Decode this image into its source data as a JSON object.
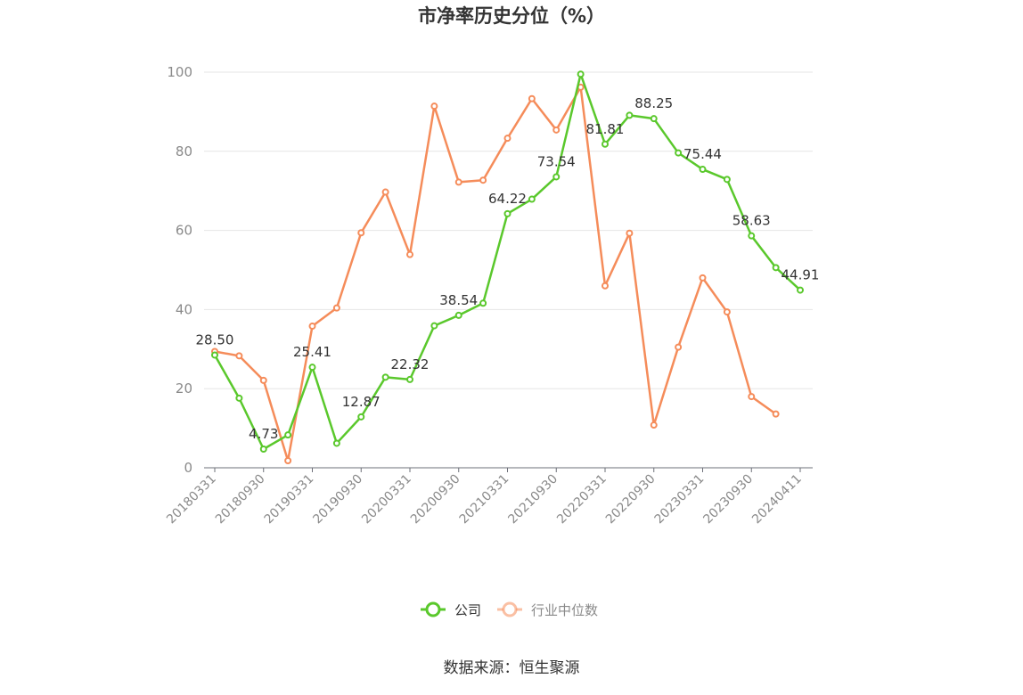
{
  "chart_data": {
    "type": "line",
    "title": "市净率历史分位（%）",
    "source": "数据来源：恒生聚源",
    "ylim": [
      0,
      100
    ],
    "yticks": [
      0,
      20,
      40,
      60,
      80,
      100
    ],
    "grid": true,
    "legend_position": "bottom",
    "x_tick_labels": [
      "20180331",
      "20180930",
      "20190331",
      "20190930",
      "20200331",
      "20200930",
      "20210331",
      "20210930",
      "20220331",
      "20220930",
      "20230331",
      "20230930",
      "20240411"
    ],
    "x": [
      "20180331",
      "20180630",
      "20180930",
      "20181231",
      "20190331",
      "20190630",
      "20190930",
      "20191231",
      "20200331",
      "20200630",
      "20200930",
      "20201231",
      "20210331",
      "20210630",
      "20210930",
      "20211231",
      "20220331",
      "20220630",
      "20220930",
      "20221231",
      "20230331",
      "20230630",
      "20230930",
      "20231231",
      "20240411"
    ],
    "series": [
      {
        "name": "公司",
        "color": "#5ac82c",
        "values": [
          28.5,
          17.6,
          4.73,
          8.3,
          25.41,
          6.2,
          12.87,
          22.9,
          22.32,
          35.9,
          38.54,
          41.6,
          64.22,
          67.9,
          73.54,
          99.5,
          81.81,
          89.1,
          88.25,
          79.6,
          75.44,
          72.9,
          58.63,
          50.6,
          44.91
        ],
        "labels": [
          "28.50",
          null,
          "4.73",
          null,
          "25.41",
          null,
          "12.87",
          null,
          "22.32",
          null,
          "38.54",
          null,
          "64.22",
          null,
          "73.54",
          null,
          "81.81",
          null,
          "88.25",
          null,
          "75.44",
          null,
          "58.63",
          null,
          "44.91"
        ]
      },
      {
        "name": "行业中位数",
        "color": "#f58c5a",
        "values": [
          29.4,
          28.3,
          22.1,
          1.8,
          35.8,
          40.4,
          59.4,
          69.7,
          53.9,
          91.4,
          72.2,
          72.7,
          83.3,
          93.3,
          85.4,
          96.2,
          46.0,
          59.3,
          10.8,
          30.5,
          48.0,
          39.4,
          18.0,
          13.6,
          null
        ],
        "labels": []
      }
    ]
  }
}
